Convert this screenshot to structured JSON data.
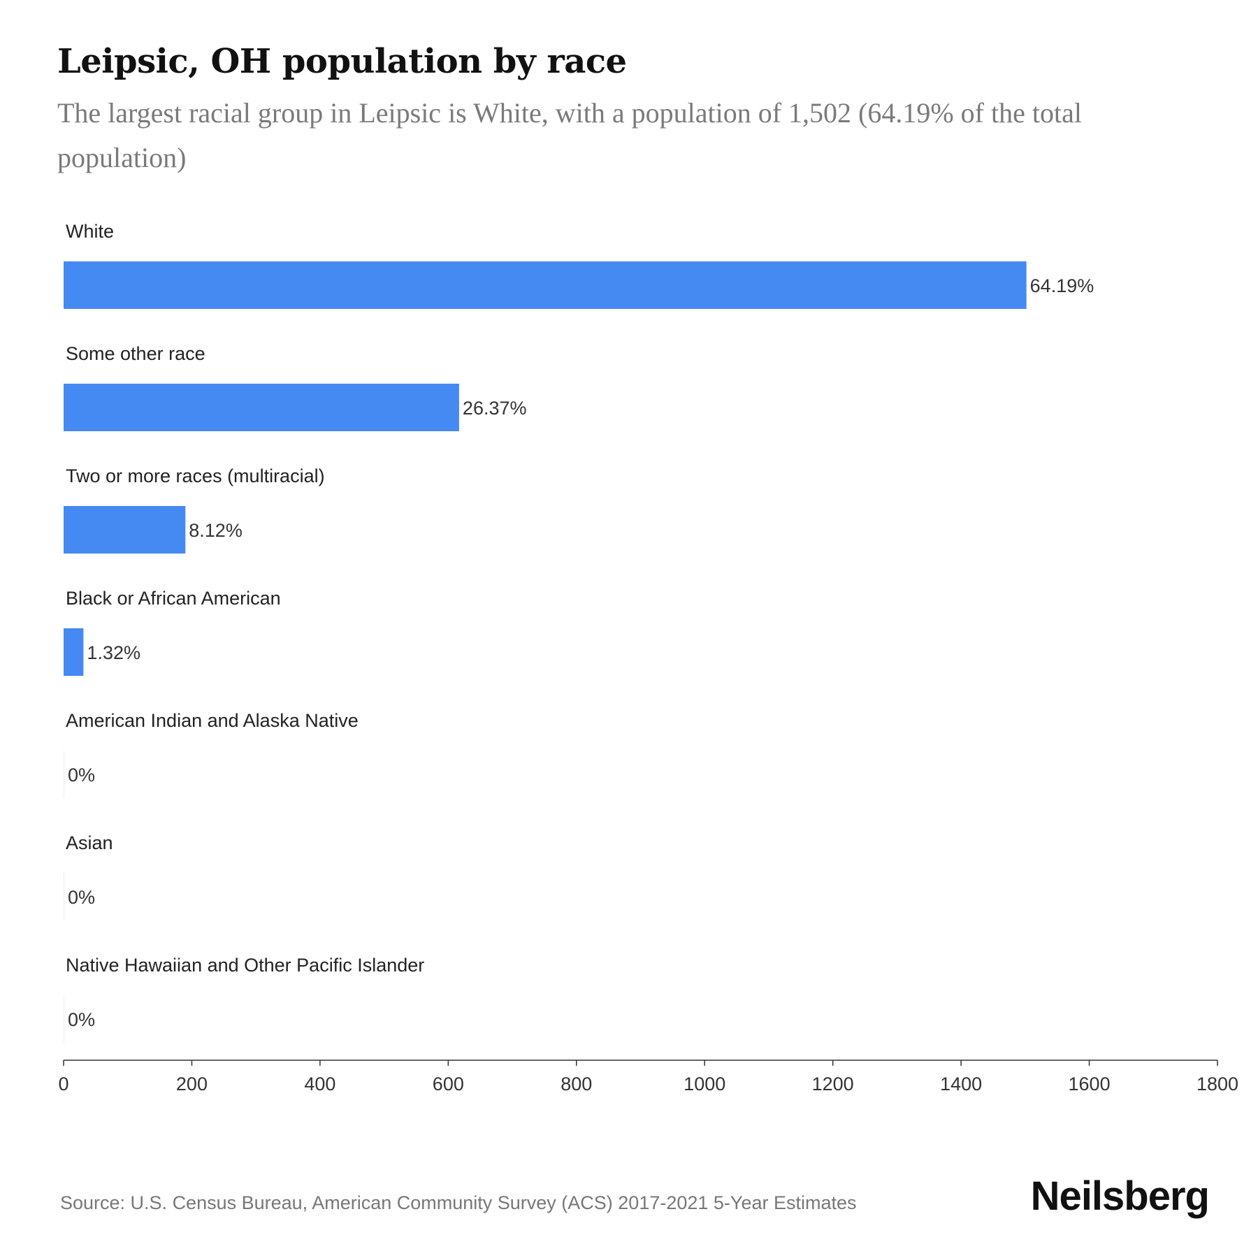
{
  "title": "Leipsic, OH population by race",
  "subtitle": "The largest racial group in Leipsic is White, with a population of 1,502 (64.19% of the total population)",
  "source": "Source: U.S. Census Bureau, American Community Survey (ACS) 2017-2021 5-Year Estimates",
  "brand": "Neilsberg",
  "colors": {
    "bar": "#4589f2",
    "axis": "#333333",
    "label": "#222222"
  },
  "chart_data": {
    "type": "bar",
    "orientation": "horizontal",
    "categories": [
      "White",
      "Some other race",
      "Two or more races (multiracial)",
      "Black or African American",
      "American Indian and Alaska Native",
      "Asian",
      "Native Hawaiian and Other Pacific Islander"
    ],
    "values": [
      1502,
      617,
      190,
      31,
      0,
      0,
      0
    ],
    "data_labels": [
      "64.19%",
      "26.37%",
      "8.12%",
      "1.32%",
      "0%",
      "0%",
      "0%"
    ],
    "xlim": [
      0,
      1800
    ],
    "xticks": [
      0,
      200,
      400,
      600,
      800,
      1000,
      1200,
      1400,
      1600,
      1800
    ],
    "grid": false,
    "legend": "none"
  }
}
